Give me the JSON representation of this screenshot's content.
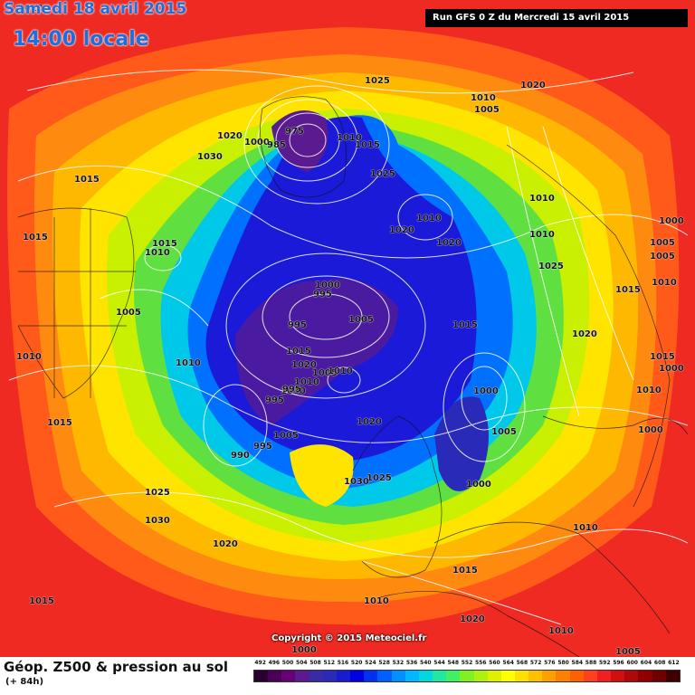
{
  "header": {
    "date": "Samedi 18 avril 2015",
    "time": "14:00 locale",
    "run": "Run GFS 0 Z du Mercredi 15 avril 2015"
  },
  "copyright": "Copyright © 2015 Meteociel.fr",
  "footer": {
    "product": "Géop. Z500 & pression au sol",
    "forecast_hour": "(+ 84h)"
  },
  "legend": {
    "values": [
      "492",
      "496",
      "500",
      "504",
      "508",
      "512",
      "516",
      "520",
      "524",
      "528",
      "532",
      "536",
      "540",
      "544",
      "548",
      "552",
      "556",
      "560",
      "564",
      "568",
      "572",
      "576",
      "580",
      "584",
      "588",
      "592",
      "596",
      "600",
      "604",
      "608",
      "612"
    ],
    "colors": [
      "#2a0030",
      "#4a0058",
      "#6a0078",
      "#5a1a90",
      "#3a2aa8",
      "#2a2ab8",
      "#1a1ad0",
      "#0000e0",
      "#0030f0",
      "#0060ff",
      "#0090ff",
      "#00b8ff",
      "#00d8e0",
      "#20e8a0",
      "#40f060",
      "#80f020",
      "#b0f010",
      "#e0f000",
      "#ffff00",
      "#ffe000",
      "#ffc000",
      "#ffa000",
      "#ff8000",
      "#ff6000",
      "#ff4020",
      "#f02020",
      "#d01010",
      "#b00808",
      "#900000",
      "#700000",
      "#400000"
    ]
  },
  "pressure_labels": [
    "1010",
    "1025",
    "1020",
    "1010",
    "1005",
    "1020",
    "1000",
    "1030",
    "975",
    "985",
    "1010",
    "1015",
    "1025",
    "1015",
    "1010",
    "1010",
    "1000",
    "1020",
    "1015",
    "1010",
    "1020",
    "1005",
    "1005",
    "1025",
    "1015",
    "1010",
    "1000",
    "995",
    "995",
    "1005",
    "1015",
    "1010",
    "1020",
    "1005",
    "1010",
    "1015",
    "1020",
    "1015",
    "1010",
    "1030",
    "995",
    "1005",
    "995",
    "1000",
    "1010",
    "1000",
    "990",
    "995",
    "1025",
    "1010",
    "1015",
    "1020",
    "1005",
    "1030",
    "1025",
    "1000",
    "1000",
    "1030",
    "1020",
    "1010",
    "1015",
    "1015",
    "1010",
    "1020",
    "1010",
    "1000",
    "1005",
    "1015",
    "1010",
    "1005"
  ]
}
